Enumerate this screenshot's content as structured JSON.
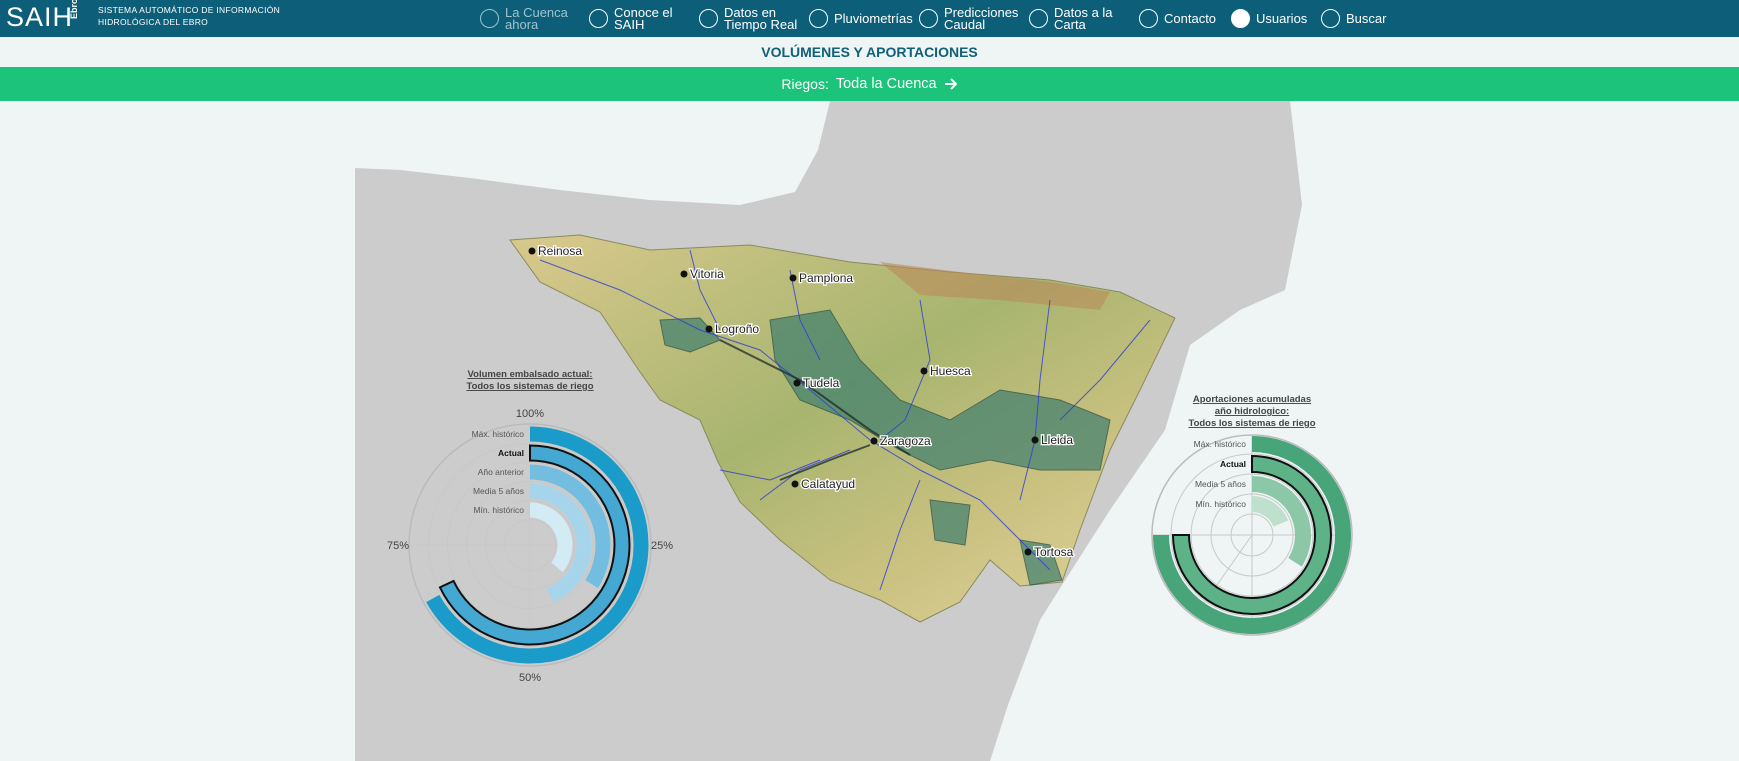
{
  "header": {
    "logo": "SAIH",
    "logo_side": "Ebro",
    "tagline": [
      "SISTEMA AUTOMÁTICO DE INFORMACIÓN",
      "HIDROLÓGICA DEL EBRO"
    ],
    "nav": [
      {
        "lines": [
          "La Cuenca",
          "ahora"
        ],
        "active": true
      },
      {
        "lines": [
          "Conoce el",
          "SAIH"
        ]
      },
      {
        "lines": [
          "Datos en",
          "Tiempo Real"
        ]
      },
      {
        "lines": [
          "Pluviometrías"
        ]
      },
      {
        "lines": [
          "Predicciones",
          "Caudal"
        ]
      },
      {
        "lines": [
          "Datos a la",
          "Carta"
        ]
      },
      {
        "lines": [
          "Contacto"
        ]
      },
      {
        "lines": [
          "Usuarios"
        ]
      },
      {
        "lines": [
          "Buscar"
        ]
      }
    ]
  },
  "page_title": "VOLÚMENES Y APORTACIONES",
  "filter": {
    "label": "Riegos:",
    "value": "Toda la Cuenca"
  },
  "map": {
    "cities": [
      "Reinosa",
      "Vitoria",
      "Pamplona",
      "Logroño",
      "Tudela",
      "Huesca",
      "Zaragoza",
      "Lleida",
      "Calatayud",
      "Tortosa"
    ]
  },
  "chart_data": [
    {
      "type": "radial-bar",
      "title": [
        "Volumen embalsado actual:",
        "Todos los sistemas de riego"
      ],
      "categories": [
        "Máx. histórico",
        "Actual",
        "Año anterior",
        "Media 5 años",
        "Mín. histórico"
      ],
      "values": [
        67,
        68,
        34,
        44,
        36
      ],
      "colors": [
        "#1b9bc9",
        "#45a8d3",
        "#72bde0",
        "#a6d5eb",
        "#d3ebf5"
      ],
      "highlight": "Actual",
      "ylim": [
        0,
        100
      ],
      "yticks": [
        {
          "value": 100,
          "label": "100%"
        },
        {
          "value": 25,
          "label": "25%"
        },
        {
          "value": 50,
          "label": "50%"
        },
        {
          "value": 75,
          "label": "75%"
        }
      ]
    },
    {
      "type": "radial-bar",
      "title": [
        "Aportaciones acumuladas",
        "año hidrologico:",
        "Todos los sistemas de riego"
      ],
      "categories": [
        "Máx. histórico",
        "Actual",
        "Media 5 años",
        "Mín. histórico"
      ],
      "values": [
        75,
        75,
        34,
        19
      ],
      "colors": [
        "#48a57a",
        "#5db287",
        "#8cc8a7",
        "#bfe0cd"
      ],
      "highlight": "Actual",
      "ylim": [
        0,
        100
      ]
    }
  ]
}
